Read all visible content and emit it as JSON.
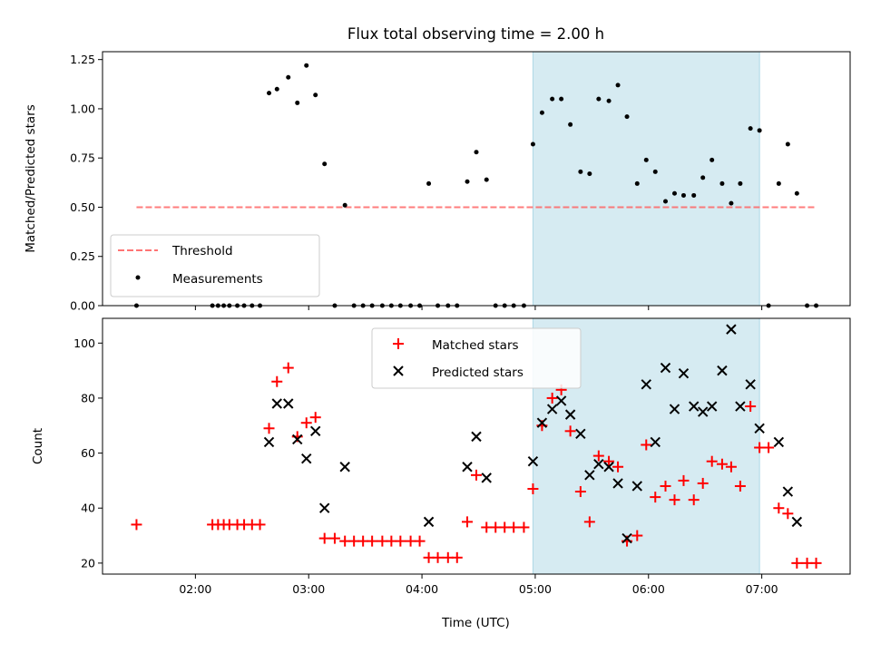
{
  "chart_data": [
    {
      "type": "scatter",
      "title": "Flux total observing time = 2.00 h",
      "ylabel": "Matched/Predicted stars",
      "xlabel": "",
      "xlim": [
        1.18,
        7.78
      ],
      "ylim": [
        0,
        1.29
      ],
      "yticks": [
        0,
        0.25,
        0.5,
        0.75,
        1.0,
        1.25
      ],
      "ytick_labels": [
        "0.00",
        "0.25",
        "0.50",
        "0.75",
        "1.00",
        "1.25"
      ],
      "xticks": [
        2,
        3,
        4,
        5,
        6,
        7
      ],
      "xtick_labels": [
        "",
        "",
        "",
        "",
        "",
        ""
      ],
      "highlight_span": {
        "x0": 4.98,
        "x1": 6.98,
        "color": "#add8e6"
      },
      "legend_position": "lower-left",
      "threshold": {
        "name": "Threshold",
        "value": 0.5,
        "x0": 1.48,
        "x1": 7.48,
        "color": "#ff6666",
        "style": "dashed"
      },
      "series": [
        {
          "name": "Measurements",
          "color": "#000000",
          "marker": "dot",
          "points": [
            [
              1.48,
              0
            ],
            [
              2.15,
              0
            ],
            [
              2.2,
              0
            ],
            [
              2.25,
              0
            ],
            [
              2.3,
              0
            ],
            [
              2.37,
              0
            ],
            [
              2.43,
              0
            ],
            [
              2.5,
              0
            ],
            [
              2.57,
              0
            ],
            [
              2.65,
              1.08
            ],
            [
              2.72,
              1.1
            ],
            [
              2.82,
              1.16
            ],
            [
              2.9,
              1.03
            ],
            [
              2.98,
              1.22
            ],
            [
              3.06,
              1.07
            ],
            [
              3.14,
              0.72
            ],
            [
              3.23,
              0
            ],
            [
              3.32,
              0.51
            ],
            [
              3.4,
              0
            ],
            [
              3.48,
              0
            ],
            [
              3.56,
              0
            ],
            [
              3.65,
              0
            ],
            [
              3.73,
              0
            ],
            [
              3.81,
              0
            ],
            [
              3.9,
              0
            ],
            [
              3.98,
              0
            ],
            [
              4.06,
              0.62
            ],
            [
              4.14,
              0
            ],
            [
              4.23,
              0
            ],
            [
              4.31,
              0
            ],
            [
              4.4,
              0.63
            ],
            [
              4.48,
              0.78
            ],
            [
              4.57,
              0.64
            ],
            [
              4.65,
              0
            ],
            [
              4.73,
              0
            ],
            [
              4.81,
              0
            ],
            [
              4.9,
              0
            ],
            [
              4.98,
              0.82
            ],
            [
              5.06,
              0.98
            ],
            [
              5.15,
              1.05
            ],
            [
              5.23,
              1.05
            ],
            [
              5.31,
              0.92
            ],
            [
              5.4,
              0.68
            ],
            [
              5.48,
              0.67
            ],
            [
              5.56,
              1.05
            ],
            [
              5.65,
              1.04
            ],
            [
              5.73,
              1.12
            ],
            [
              5.81,
              0.96
            ],
            [
              5.9,
              0.62
            ],
            [
              5.98,
              0.74
            ],
            [
              6.06,
              0.68
            ],
            [
              6.15,
              0.53
            ],
            [
              6.23,
              0.57
            ],
            [
              6.31,
              0.56
            ],
            [
              6.4,
              0.56
            ],
            [
              6.48,
              0.65
            ],
            [
              6.56,
              0.74
            ],
            [
              6.65,
              0.62
            ],
            [
              6.73,
              0.52
            ],
            [
              6.81,
              0.62
            ],
            [
              6.9,
              0.9
            ],
            [
              6.98,
              0.89
            ],
            [
              7.06,
              0
            ],
            [
              7.15,
              0.62
            ],
            [
              7.23,
              0.82
            ],
            [
              7.31,
              0.57
            ],
            [
              7.4,
              0
            ],
            [
              7.48,
              0
            ]
          ]
        }
      ]
    },
    {
      "type": "scatter",
      "title": "",
      "ylabel": "Count",
      "xlabel": "Time (UTC)",
      "xlim": [
        1.18,
        7.78
      ],
      "ylim": [
        16,
        109
      ],
      "yticks": [
        20,
        40,
        60,
        80,
        100
      ],
      "ytick_labels": [
        "20",
        "40",
        "60",
        "80",
        "100"
      ],
      "xticks": [
        2,
        3,
        4,
        5,
        6,
        7
      ],
      "xtick_labels": [
        "02:00",
        "03:00",
        "04:00",
        "05:00",
        "06:00",
        "07:00"
      ],
      "highlight_span": {
        "x0": 4.98,
        "x1": 6.98,
        "color": "#add8e6"
      },
      "legend_position": "upper-center",
      "series": [
        {
          "name": "Matched stars",
          "color": "#ff0000",
          "marker": "plus",
          "points": [
            [
              1.48,
              34
            ],
            [
              2.15,
              34
            ],
            [
              2.2,
              34
            ],
            [
              2.25,
              34
            ],
            [
              2.3,
              34
            ],
            [
              2.37,
              34
            ],
            [
              2.43,
              34
            ],
            [
              2.5,
              34
            ],
            [
              2.57,
              34
            ],
            [
              2.65,
              69
            ],
            [
              2.72,
              86
            ],
            [
              2.82,
              91
            ],
            [
              2.9,
              66
            ],
            [
              2.98,
              71
            ],
            [
              3.06,
              73
            ],
            [
              3.14,
              29
            ],
            [
              3.23,
              29
            ],
            [
              3.32,
              28
            ],
            [
              3.4,
              28
            ],
            [
              3.48,
              28
            ],
            [
              3.56,
              28
            ],
            [
              3.65,
              28
            ],
            [
              3.73,
              28
            ],
            [
              3.81,
              28
            ],
            [
              3.9,
              28
            ],
            [
              3.98,
              28
            ],
            [
              4.06,
              22
            ],
            [
              4.14,
              22
            ],
            [
              4.23,
              22
            ],
            [
              4.31,
              22
            ],
            [
              4.4,
              35
            ],
            [
              4.48,
              52
            ],
            [
              4.57,
              33
            ],
            [
              4.65,
              33
            ],
            [
              4.73,
              33
            ],
            [
              4.81,
              33
            ],
            [
              4.9,
              33
            ],
            [
              4.98,
              47
            ],
            [
              5.06,
              70
            ],
            [
              5.15,
              80
            ],
            [
              5.23,
              83
            ],
            [
              5.31,
              68
            ],
            [
              5.4,
              46
            ],
            [
              5.48,
              35
            ],
            [
              5.56,
              59
            ],
            [
              5.65,
              57
            ],
            [
              5.73,
              55
            ],
            [
              5.81,
              28
            ],
            [
              5.9,
              30
            ],
            [
              5.98,
              63
            ],
            [
              6.06,
              44
            ],
            [
              6.15,
              48
            ],
            [
              6.23,
              43
            ],
            [
              6.31,
              50
            ],
            [
              6.4,
              43
            ],
            [
              6.48,
              49
            ],
            [
              6.56,
              57
            ],
            [
              6.65,
              56
            ],
            [
              6.73,
              55
            ],
            [
              6.81,
              48
            ],
            [
              6.9,
              77
            ],
            [
              6.98,
              62
            ],
            [
              7.06,
              62
            ],
            [
              7.15,
              40
            ],
            [
              7.23,
              38
            ],
            [
              7.31,
              20
            ],
            [
              7.4,
              20
            ],
            [
              7.48,
              20
            ]
          ]
        },
        {
          "name": "Predicted stars",
          "color": "#000000",
          "marker": "x",
          "points": [
            [
              2.65,
              64
            ],
            [
              2.72,
              78
            ],
            [
              2.82,
              78
            ],
            [
              2.9,
              65
            ],
            [
              2.98,
              58
            ],
            [
              3.06,
              68
            ],
            [
              3.14,
              40
            ],
            [
              3.32,
              55
            ],
            [
              4.06,
              35
            ],
            [
              4.4,
              55
            ],
            [
              4.48,
              66
            ],
            [
              4.57,
              51
            ],
            [
              4.98,
              57
            ],
            [
              5.06,
              71
            ],
            [
              5.15,
              76
            ],
            [
              5.23,
              79
            ],
            [
              5.31,
              74
            ],
            [
              5.4,
              67
            ],
            [
              5.48,
              52
            ],
            [
              5.56,
              56
            ],
            [
              5.65,
              55
            ],
            [
              5.73,
              49
            ],
            [
              5.81,
              29
            ],
            [
              5.9,
              48
            ],
            [
              5.98,
              85
            ],
            [
              6.06,
              64
            ],
            [
              6.15,
              91
            ],
            [
              6.23,
              76
            ],
            [
              6.31,
              89
            ],
            [
              6.4,
              77
            ],
            [
              6.48,
              75
            ],
            [
              6.56,
              77
            ],
            [
              6.65,
              90
            ],
            [
              6.73,
              105
            ],
            [
              6.81,
              77
            ],
            [
              6.9,
              85
            ],
            [
              6.98,
              69
            ],
            [
              7.15,
              64
            ],
            [
              7.23,
              46
            ],
            [
              7.31,
              35
            ]
          ]
        }
      ]
    }
  ]
}
